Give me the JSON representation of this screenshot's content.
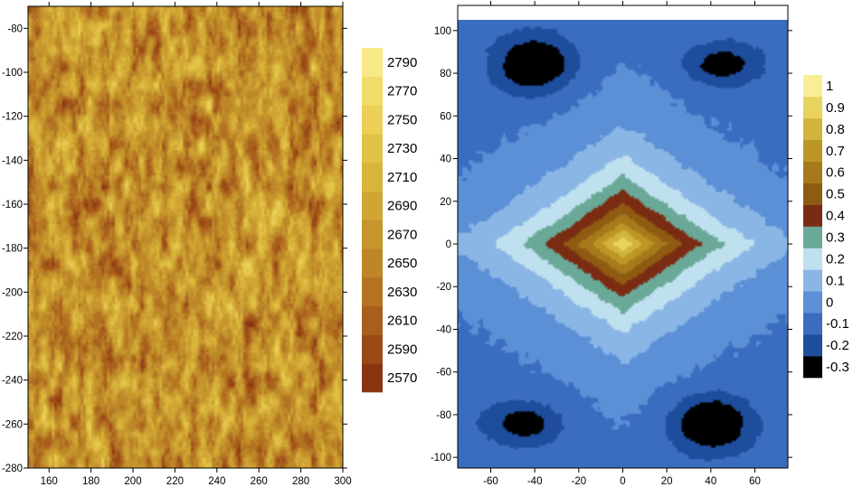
{
  "chart_data": [
    {
      "type": "heatmap",
      "subtype": "filled-contour",
      "title": "",
      "xlabel": "",
      "ylabel": "",
      "xlim": [
        150,
        300
      ],
      "ylim": [
        -280,
        -70
      ],
      "x_ticks": [
        160,
        180,
        200,
        220,
        240,
        260,
        280,
        300
      ],
      "y_ticks": [
        -80,
        -100,
        -120,
        -140,
        -160,
        -180,
        -200,
        -220,
        -240,
        -260,
        -280
      ],
      "value_range": [
        2570,
        2800
      ],
      "pattern": "noisy texture, mean about 2690",
      "colorbar": {
        "levels": [
          2570,
          2590,
          2610,
          2630,
          2650,
          2670,
          2690,
          2710,
          2730,
          2750,
          2770,
          2790
        ],
        "colors": [
          "#8a3512",
          "#9a4a16",
          "#a85e1c",
          "#b37322",
          "#bd8728",
          "#c6962d",
          "#d0a533",
          "#d9b43b",
          "#e2c246",
          "#ebcf56",
          "#f2dc6a",
          "#f8e986"
        ]
      }
    },
    {
      "type": "heatmap",
      "subtype": "filled-contour",
      "title": "",
      "xlabel": "",
      "ylabel": "",
      "xlim": [
        -75,
        75
      ],
      "ylim": [
        -105,
        105
      ],
      "x_ticks": [
        -60,
        -40,
        -20,
        0,
        20,
        40,
        60
      ],
      "y_ticks": [
        100,
        80,
        60,
        40,
        20,
        0,
        -20,
        -40,
        -60,
        -80,
        -100
      ],
      "peak": {
        "x": 0,
        "y": 0,
        "value": 1.0
      },
      "minima": [
        {
          "x": -33,
          "y": 83,
          "value": -0.3
        },
        {
          "x": 33,
          "y": -83,
          "value": -0.3
        }
      ],
      "pattern": "central diamond-shaped peak decaying outward, weak minima near corners",
      "colorbar": {
        "levels": [
          -0.3,
          -0.2,
          -0.1,
          0,
          0.1,
          0.2,
          0.3,
          0.4,
          0.5,
          0.6,
          0.7,
          0.8,
          0.9,
          1
        ],
        "colors": [
          "#000000",
          "#1e4d9c",
          "#3a6dbf",
          "#5b8fd6",
          "#8ab6e6",
          "#bfe0ee",
          "#6aa897",
          "#7a2c12",
          "#8f5a12",
          "#a6791a",
          "#bb9526",
          "#d2b33c",
          "#e8d35e",
          "#f8ee97"
        ]
      }
    }
  ]
}
